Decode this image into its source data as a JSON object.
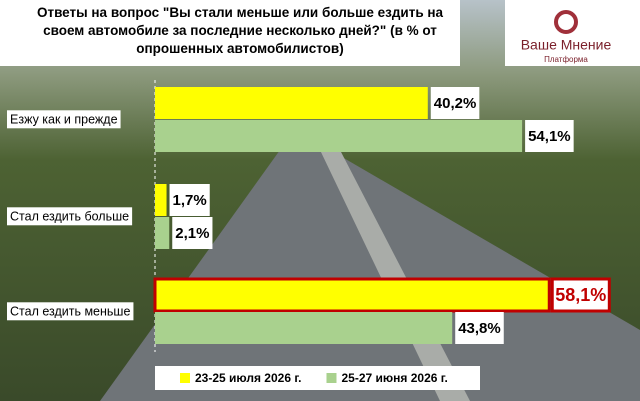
{
  "chart_data": {
    "type": "hbar",
    "title": "Ответы на вопрос \"Вы стали меньше или больше ездить на своем автомобиле за последние несколько дней?\" (в % от опрошенных автомобилистов)",
    "categories": [
      "Езжу как и прежде",
      "Стал ездить больше",
      "Стал ездить меньше"
    ],
    "series": [
      {
        "name": "23-25 июля 2026 г.",
        "color": "#ffff00",
        "values": [
          40.2,
          1.7,
          58.1
        ],
        "value_labels": [
          "40,2%",
          "1,7%",
          "58,1%"
        ]
      },
      {
        "name": "25-27 июня 2026 г.",
        "color": "#a9d18e",
        "values": [
          54.1,
          2.1,
          43.8
        ],
        "value_labels": [
          "54,1%",
          "2,1%",
          "43,8%"
        ]
      }
    ],
    "xlim": [
      0,
      70
    ],
    "highlight": {
      "series": 0,
      "index": 2,
      "color": "#c00000"
    },
    "legend": "bottom"
  },
  "logo": {
    "name": "Ваше Мнение",
    "subtitle": "Платформа"
  }
}
